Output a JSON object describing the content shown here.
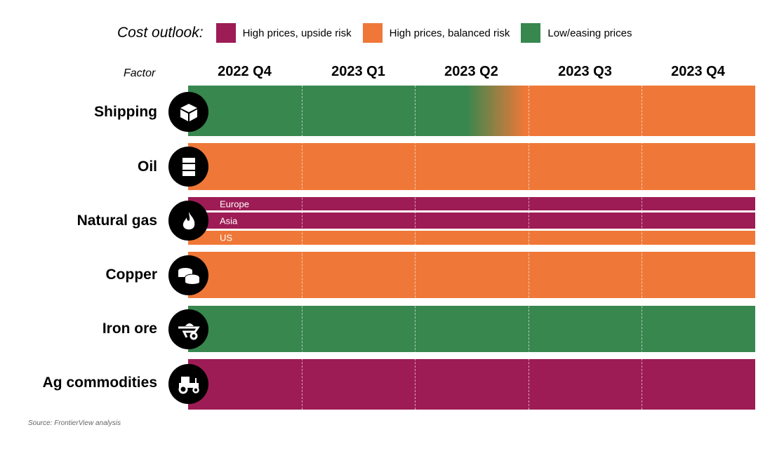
{
  "colors": {
    "upside": "#9d1c55",
    "balanced": "#ef7838",
    "low": "#37874f"
  },
  "chart_data": {
    "type": "table",
    "legend_title": "Cost outlook:",
    "legend": [
      {
        "key": "upside",
        "label": "High prices, upside risk"
      },
      {
        "key": "balanced",
        "label": "High prices, balanced risk"
      },
      {
        "key": "low",
        "label": "Low/easing prices"
      }
    ],
    "factor_header": "Factor",
    "columns": [
      "2022 Q4",
      "2023 Q1",
      "2023 Q2",
      "2023 Q3",
      "2023 Q4"
    ],
    "rows": [
      {
        "label": "Shipping",
        "icon": "package-box-icon",
        "values": [
          "low",
          "low",
          "low→balanced",
          "balanced",
          "balanced"
        ]
      },
      {
        "label": "Oil",
        "icon": "oil-barrel-icon",
        "values": [
          "balanced",
          "balanced",
          "balanced",
          "balanced",
          "balanced"
        ]
      },
      {
        "label": "Natural gas",
        "icon": "flame-icon",
        "subrows": [
          {
            "label": "Europe",
            "values": [
              "upside",
              "upside",
              "upside",
              "upside",
              "upside"
            ]
          },
          {
            "label": "Asia",
            "values": [
              "upside",
              "upside",
              "upside",
              "upside",
              "upside"
            ]
          },
          {
            "label": "US",
            "values": [
              "balanced",
              "balanced",
              "balanced",
              "balanced",
              "balanced"
            ]
          }
        ]
      },
      {
        "label": "Copper",
        "icon": "coins-icon",
        "values": [
          "balanced",
          "balanced",
          "balanced",
          "balanced",
          "balanced"
        ]
      },
      {
        "label": "Iron ore",
        "icon": "wheelbarrow-icon",
        "values": [
          "low",
          "low",
          "low",
          "low",
          "low"
        ]
      },
      {
        "label": "Ag commodities",
        "icon": "tractor-icon",
        "values": [
          "upside",
          "upside",
          "upside",
          "upside",
          "upside"
        ]
      }
    ]
  },
  "source": "Source: FrontierView analysis"
}
